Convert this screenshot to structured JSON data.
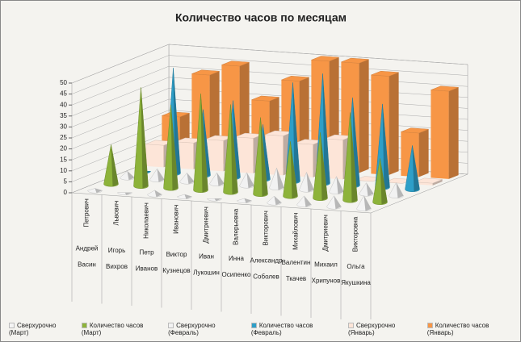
{
  "chart_data": {
    "type": "bar3d",
    "title": "Количество часов по месяцам",
    "categories": [
      [
        "Андрей",
        "Петрович",
        "Васин"
      ],
      [
        "Игорь",
        "Львович",
        "Вихров"
      ],
      [
        "Петр",
        "Николаевич",
        "Иванов"
      ],
      [
        "Виктор",
        "Иванович",
        "Кузнецов"
      ],
      [
        "Иван",
        "Дмитриевич",
        "Лукошин"
      ],
      [
        "Инна",
        "Валерьевна",
        "Осипенко"
      ],
      [
        "Александр",
        "Викторович",
        "Соболев"
      ],
      [
        "Валентин",
        "Михайлович",
        "Ткачев"
      ],
      [
        "Михаил",
        "Дмитриевич",
        "Хрипунов"
      ],
      [
        "Ольга",
        "Викторовна",
        "Якушкина"
      ]
    ],
    "series": [
      {
        "name": "Сверхурочно (Март)",
        "color": "#f4f4f4",
        "shape": "cone",
        "values": [
          1,
          0,
          2,
          1,
          0,
          1,
          3,
          4,
          5,
          6
        ]
      },
      {
        "name": "Количество часов (Март)",
        "color": "#8db33a",
        "shape": "cone",
        "values": [
          18,
          45,
          38,
          44,
          40,
          35,
          25,
          30,
          40,
          20
        ]
      },
      {
        "name": "Сверхурочно (Февраль)",
        "color": "#f2f2f2",
        "shape": "cone",
        "values": [
          3,
          5,
          4,
          5,
          6,
          9,
          8,
          7,
          5,
          6
        ]
      },
      {
        "name": "Количество часов (Февраль)",
        "color": "#2e9fc8",
        "shape": "cone",
        "values": [
          0,
          48,
          30,
          35,
          25,
          45,
          50,
          40,
          38,
          20
        ]
      },
      {
        "name": "Сверхурочно (Январь)",
        "color": "#fde5d8",
        "shape": "box",
        "values": [
          10,
          12,
          14,
          16,
          18,
          15,
          18,
          0,
          0,
          1
        ]
      },
      {
        "name": "Количество часов (Январь)",
        "color": "#f79646",
        "shape": "box",
        "values": [
          20,
          40,
          45,
          30,
          40,
          50,
          50,
          45,
          20,
          40
        ]
      }
    ],
    "ylim": [
      0,
      50
    ],
    "yticks": [
      0,
      5,
      10,
      15,
      20,
      25,
      30,
      35,
      40,
      45,
      50
    ],
    "grid": true
  }
}
